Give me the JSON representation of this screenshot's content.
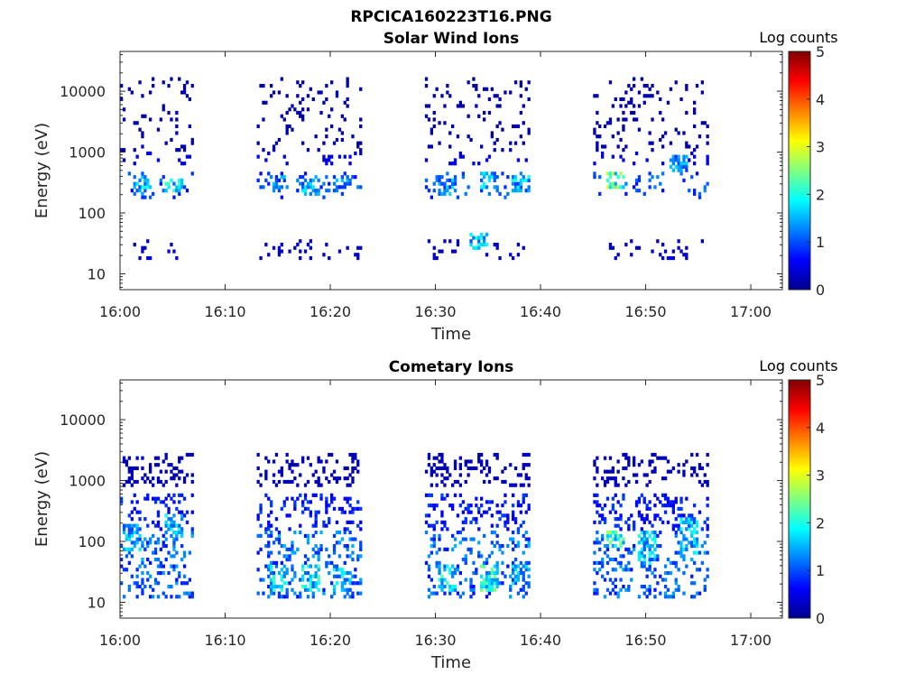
{
  "figure_title": "RPCICA160223T16.PNG",
  "colors": {
    "colormap": [
      "#00008f",
      "#0000ff",
      "#0080ff",
      "#00ffff",
      "#80ff80",
      "#ffff00",
      "#ff8000",
      "#ff0000",
      "#800000"
    ],
    "axes": "#262626"
  },
  "chart_data": [
    {
      "type": "heatmap",
      "title": "Solar Wind Ions",
      "xlabel": "Time",
      "ylabel": "Energy (eV)",
      "x_range": [
        "16:00",
        "17:03"
      ],
      "x_ticks": [
        "16:00",
        "16:10",
        "16:20",
        "16:30",
        "16:40",
        "16:50",
        "17:00"
      ],
      "y_scale": "log",
      "y_range": [
        5.5,
        45000
      ],
      "y_ticks": [
        10,
        100,
        1000,
        10000
      ],
      "y_tick_labels": [
        "10",
        "100",
        "1000",
        "10000"
      ],
      "colorbar": {
        "label": "Log counts",
        "range": [
          0,
          5
        ],
        "ticks": [
          "0",
          "1",
          "2",
          "3",
          "4",
          "5"
        ]
      },
      "grid": false,
      "activity_intervals": [
        [
          "16:00",
          "16:07"
        ],
        [
          "16:13",
          "16:23"
        ],
        [
          "16:29",
          "16:39"
        ],
        [
          "16:45",
          "16:56"
        ]
      ],
      "energy_bands": [
        {
          "energy_min": 18,
          "energy_max": 35,
          "log_counts": 0.4
        },
        {
          "energy_min": 180,
          "energy_max": 500,
          "log_counts": 1.2
        },
        {
          "energy_min": 600,
          "energy_max": 1000,
          "log_counts": 0.6
        },
        {
          "energy_min": 1000,
          "energy_max": 16000,
          "log_counts": 0.2
        }
      ],
      "features": [
        {
          "time": "16:02",
          "energy_min": 200,
          "energy_max": 420,
          "log_counts": 1.9
        },
        {
          "time": "16:05",
          "energy_min": 220,
          "energy_max": 380,
          "log_counts": 2.1
        },
        {
          "time": "16:15",
          "energy_min": 250,
          "energy_max": 400,
          "log_counts": 1.5
        },
        {
          "time": "16:18",
          "energy_min": 200,
          "energy_max": 420,
          "log_counts": 1.7
        },
        {
          "time": "16:21",
          "energy_min": 220,
          "energy_max": 400,
          "log_counts": 1.5
        },
        {
          "time": "16:31",
          "energy_min": 200,
          "energy_max": 400,
          "log_counts": 1.6
        },
        {
          "time": "16:34",
          "energy_min": 25,
          "energy_max": 45,
          "log_counts": 1.8
        },
        {
          "time": "16:35",
          "energy_min": 260,
          "energy_max": 450,
          "log_counts": 1.9
        },
        {
          "time": "16:38",
          "energy_min": 220,
          "energy_max": 420,
          "log_counts": 1.8
        },
        {
          "time": "16:47",
          "energy_min": 250,
          "energy_max": 500,
          "log_counts": 2.8
        },
        {
          "time": "16:53",
          "energy_min": 500,
          "energy_max": 900,
          "log_counts": 1.6
        }
      ]
    },
    {
      "type": "heatmap",
      "title": "Cometary Ions",
      "xlabel": "Time",
      "ylabel": "Energy (eV)",
      "x_range": [
        "16:00",
        "17:03"
      ],
      "x_ticks": [
        "16:00",
        "16:10",
        "16:20",
        "16:30",
        "16:40",
        "16:50",
        "17:00"
      ],
      "y_scale": "log",
      "y_range": [
        5.5,
        45000
      ],
      "y_ticks": [
        10,
        100,
        1000,
        10000
      ],
      "y_tick_labels": [
        "10",
        "100",
        "1000",
        "10000"
      ],
      "colorbar": {
        "label": "Log counts",
        "range": [
          0,
          5
        ],
        "ticks": [
          "0",
          "1",
          "2",
          "3",
          "4",
          "5"
        ]
      },
      "grid": false,
      "activity_intervals": [
        [
          "16:00",
          "16:07"
        ],
        [
          "16:13",
          "16:23"
        ],
        [
          "16:29",
          "16:39"
        ],
        [
          "16:45",
          "16:56"
        ]
      ],
      "energy_bands": [
        {
          "energy_min": 12,
          "energy_max": 45,
          "log_counts": 1.3
        },
        {
          "energy_min": 45,
          "energy_max": 160,
          "log_counts": 1.4
        },
        {
          "energy_min": 160,
          "energy_max": 650,
          "log_counts": 0.9
        },
        {
          "energy_min": 800,
          "energy_max": 3000,
          "log_counts": 0.3
        }
      ],
      "features": [
        {
          "time": "16:01",
          "energy_min": 70,
          "energy_max": 200,
          "log_counts": 1.7
        },
        {
          "time": "16:05",
          "energy_min": 100,
          "energy_max": 300,
          "log_counts": 1.8
        },
        {
          "time": "16:15",
          "energy_min": 15,
          "energy_max": 40,
          "log_counts": 2.0
        },
        {
          "time": "16:18",
          "energy_min": 15,
          "energy_max": 40,
          "log_counts": 2.1
        },
        {
          "time": "16:21",
          "energy_min": 15,
          "energy_max": 35,
          "log_counts": 1.8
        },
        {
          "time": "16:31",
          "energy_min": 15,
          "energy_max": 40,
          "log_counts": 2.1
        },
        {
          "time": "16:35",
          "energy_min": 15,
          "energy_max": 40,
          "log_counts": 2.3
        },
        {
          "time": "16:38",
          "energy_min": 20,
          "energy_max": 40,
          "log_counts": 1.7
        },
        {
          "time": "16:47",
          "energy_min": 80,
          "energy_max": 160,
          "log_counts": 2.5
        },
        {
          "time": "16:50",
          "energy_min": 40,
          "energy_max": 160,
          "log_counts": 1.9
        },
        {
          "time": "16:54",
          "energy_min": 60,
          "energy_max": 250,
          "log_counts": 1.9
        }
      ]
    }
  ]
}
